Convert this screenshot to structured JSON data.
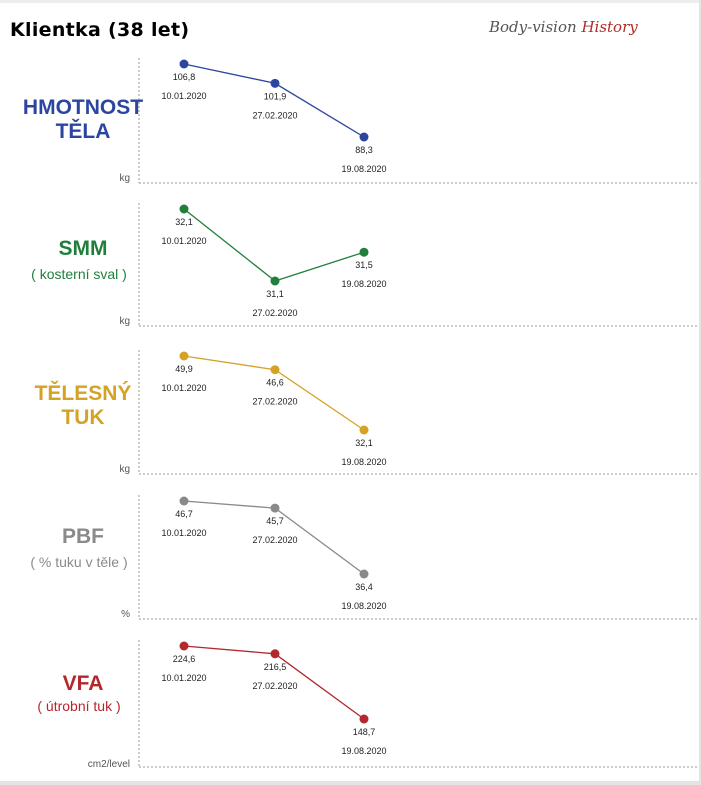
{
  "header": {
    "title": "Klientka (38 let)",
    "brand_part1": "Body-vision",
    "brand_part2": "History"
  },
  "chart_data": [
    {
      "type": "line",
      "label_lines": [
        "HMOTNOST",
        "TĚLA"
      ],
      "sublabel": "",
      "unit": "kg",
      "color": "#2c46a0",
      "x": [
        "10.01.2020",
        "27.02.2020",
        "19.08.2020"
      ],
      "values": [
        106.8,
        101.9,
        88.3
      ],
      "value_labels": [
        "106,8",
        "101,9",
        "88,3"
      ],
      "ylim": [
        83,
        112
      ]
    },
    {
      "type": "line",
      "label_lines": [
        "SMM"
      ],
      "sublabel": "( kosterní sval )",
      "unit": "kg",
      "color": "#217f3c",
      "x": [
        "10.01.2020",
        "27.02.2020",
        "19.08.2020"
      ],
      "values": [
        32.1,
        31.1,
        31.5
      ],
      "value_labels": [
        "32,1",
        "31,1",
        "31,5"
      ],
      "ylim": [
        30.8,
        32.3
      ]
    },
    {
      "type": "line",
      "label_lines": [
        "TĚLESNÝ",
        "TUK"
      ],
      "sublabel": "",
      "unit": "kg",
      "color": "#d4a326",
      "x": [
        "10.01.2020",
        "27.02.2020",
        "19.08.2020"
      ],
      "values": [
        49.9,
        46.6,
        32.1
      ],
      "value_labels": [
        "49,9",
        "46,6",
        "32,1"
      ],
      "ylim": [
        28,
        52
      ]
    },
    {
      "type": "line",
      "label_lines": [
        "PBF"
      ],
      "sublabel": "( % tuku v těle )",
      "unit": "%",
      "color": "#8a8a8a",
      "x": [
        "10.01.2020",
        "27.02.2020",
        "19.08.2020"
      ],
      "values": [
        46.7,
        45.7,
        36.4
      ],
      "value_labels": [
        "46,7",
        "45,7",
        "36,4"
      ],
      "ylim": [
        33,
        48.5
      ]
    },
    {
      "type": "line",
      "label_lines": [
        "VFA"
      ],
      "sublabel": "( útrobní tuk )",
      "unit": "cm2/level",
      "color": "#b3272d",
      "x": [
        "10.01.2020",
        "27.02.2020",
        "19.08.2020"
      ],
      "values": [
        224.6,
        216.5,
        148.7
      ],
      "value_labels": [
        "224,6",
        "216,5",
        "148,7"
      ],
      "ylim": [
        135,
        232
      ]
    }
  ]
}
